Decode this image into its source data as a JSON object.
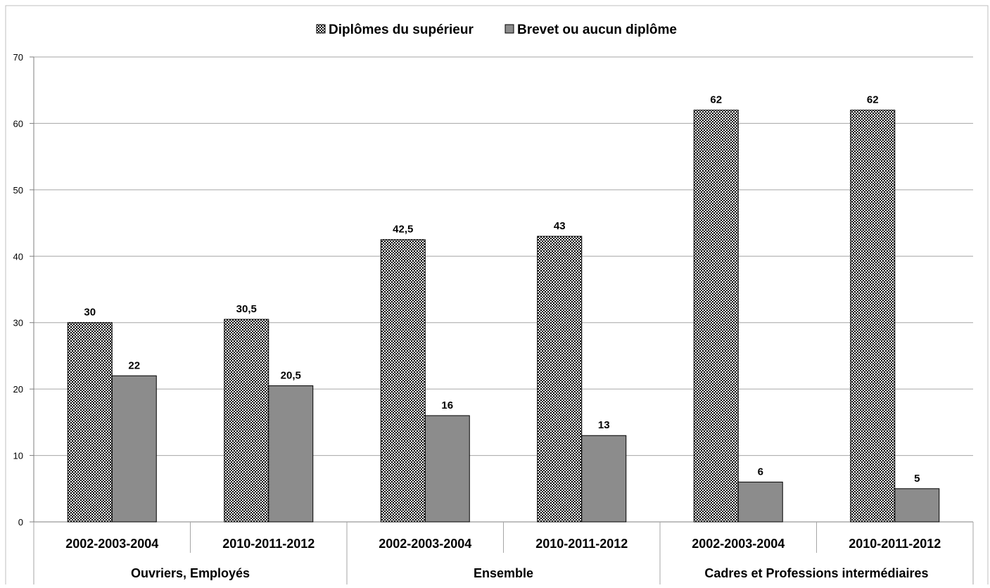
{
  "chart_data": {
    "type": "bar",
    "title": "",
    "xlabel": "",
    "ylabel": "",
    "ylim": [
      0,
      70
    ],
    "yticks": [
      0,
      10,
      20,
      30,
      40,
      50,
      60,
      70
    ],
    "grid": true,
    "legend_position": "top-center",
    "categories": [
      "2002-2003-2004",
      "2010-2011-2012",
      "2002-2003-2004",
      "2010-2011-2012",
      "2002-2003-2004",
      "2010-2011-2012"
    ],
    "groups": [
      {
        "label": "Ouvriers, Employés",
        "span": 2
      },
      {
        "label": "Ensemble",
        "span": 2
      },
      {
        "label": "Cadres et Professions intermédiaires",
        "span": 2
      }
    ],
    "series": [
      {
        "name": "Diplômes du supérieur",
        "values": [
          30,
          30.5,
          42.5,
          43,
          62,
          62
        ],
        "labels": [
          "30",
          "30,5",
          "42,5",
          "43",
          "62",
          "62"
        ],
        "pattern": "checker"
      },
      {
        "name": "Brevet ou aucun diplôme",
        "values": [
          22,
          20.5,
          16,
          13,
          6,
          5
        ],
        "labels": [
          "22",
          "20,5",
          "16",
          "13",
          "6",
          "5"
        ],
        "color": "#8c8c8c"
      }
    ]
  }
}
